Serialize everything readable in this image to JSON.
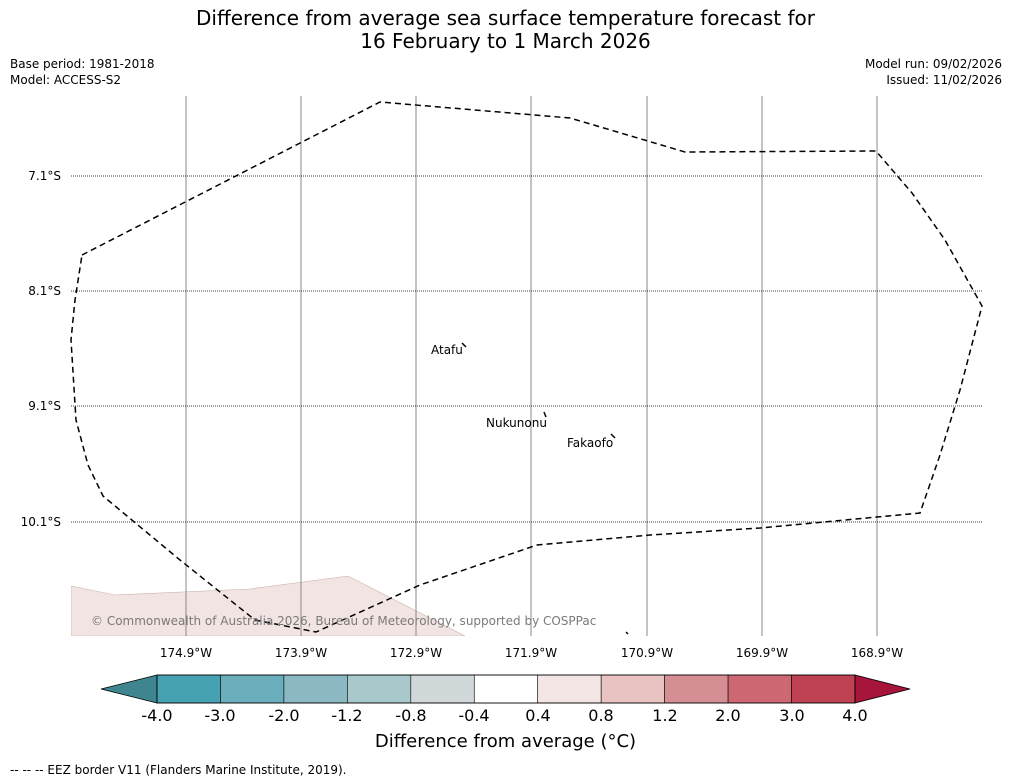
{
  "title": {
    "line1": "Difference from average sea surface temperature forecast for",
    "line2": "16 February to 1 March 2026"
  },
  "meta": {
    "base_period": "Base period: 1981-2018",
    "model": "Model: ACCESS-S2",
    "model_run": "Model run: 09/02/2026",
    "issued": "Issued: 11/02/2026"
  },
  "map": {
    "lat_labels": [
      "7.1°S",
      "8.1°S",
      "9.1°S",
      "10.1°S"
    ],
    "lon_labels": [
      "174.9°W",
      "173.9°W",
      "172.9°W",
      "171.9°W",
      "170.9°W",
      "169.9°W",
      "168.9°W"
    ],
    "places": [
      "Atafu",
      "Nukunonu",
      "Fakaofo"
    ],
    "copyright": "© Commonwealth of Australia 2026, Bureau of Meteorology, supported by COSPPac",
    "anomaly_fill_color": "#f2e4e2"
  },
  "colorbar": {
    "ticks": [
      "-4.0",
      "-3.0",
      "-2.0",
      "-1.2",
      "-0.8",
      "-0.4",
      "0.4",
      "0.8",
      "1.2",
      "2.0",
      "3.0",
      "4.0"
    ],
    "colors": [
      "#46a1b3",
      "#6aaebc",
      "#8bb9c3",
      "#a8c8cc",
      "#d1d8da",
      "#ffffff",
      "#f3e6e4",
      "#e8c3c1",
      "#d68e95",
      "#cd6873",
      "#bf4253"
    ],
    "under_color": "#3e8590",
    "over_color": "#a8153a",
    "label": "Difference from average (°C)"
  },
  "legend": {
    "text": "--  --  -- EEZ border V11 (Flanders Marine Institute, 2019)."
  }
}
